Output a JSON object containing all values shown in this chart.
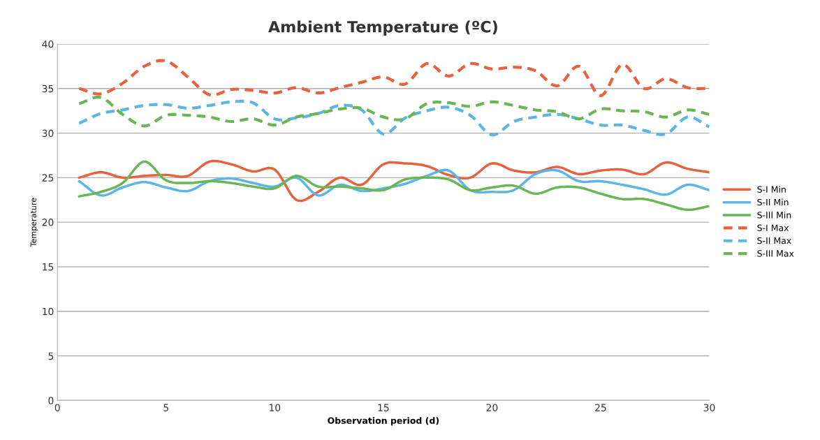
{
  "chart_data": {
    "type": "line",
    "title": "Ambient Temperature (ºC)",
    "xlabel": "Observation period (d)",
    "ylabel": "Temperature",
    "x": [
      1,
      2,
      3,
      4,
      5,
      6,
      7,
      8,
      9,
      10,
      11,
      12,
      13,
      14,
      15,
      16,
      17,
      18,
      19,
      20,
      21,
      22,
      23,
      24,
      25,
      26,
      27,
      28,
      29,
      30
    ],
    "series": [
      {
        "name": "S-I Min",
        "color": "#e8603c",
        "line_style": "solid",
        "values": [
          25.0,
          25.6,
          25.0,
          25.2,
          25.3,
          25.2,
          26.8,
          26.5,
          25.7,
          25.9,
          22.5,
          23.4,
          25.0,
          24.2,
          26.5,
          26.6,
          26.3,
          25.3,
          25.0,
          26.6,
          25.8,
          25.6,
          26.2,
          25.4,
          25.8,
          25.9,
          25.4,
          26.7,
          26.0,
          25.6
        ]
      },
      {
        "name": "S-II Min",
        "color": "#5bb5e5",
        "line_style": "solid",
        "values": [
          24.6,
          23.0,
          23.9,
          24.5,
          23.9,
          23.5,
          24.6,
          24.9,
          24.4,
          24.0,
          25.0,
          23.0,
          24.2,
          23.5,
          23.8,
          24.3,
          25.2,
          25.8,
          23.6,
          23.4,
          23.6,
          25.4,
          25.8,
          24.6,
          24.6,
          24.2,
          23.7,
          23.1,
          24.2,
          23.6
        ]
      },
      {
        "name": "S-III Min",
        "color": "#6ab655",
        "line_style": "solid",
        "values": [
          22.9,
          23.4,
          24.4,
          26.8,
          24.7,
          24.4,
          24.6,
          24.4,
          24.0,
          23.8,
          25.2,
          24.0,
          24.0,
          23.8,
          23.6,
          24.8,
          25.0,
          24.8,
          23.6,
          23.9,
          24.1,
          23.2,
          23.9,
          23.9,
          23.2,
          22.6,
          22.6,
          22.0,
          21.4,
          21.8
        ]
      },
      {
        "name": "S-I Max",
        "color": "#e8603c",
        "line_style": "dashed",
        "values": [
          35.0,
          34.4,
          35.6,
          37.5,
          38.1,
          36.3,
          34.3,
          34.9,
          34.8,
          34.5,
          35.1,
          34.5,
          35.1,
          35.7,
          36.3,
          35.5,
          37.8,
          36.4,
          37.8,
          37.2,
          37.4,
          37.0,
          35.3,
          37.5,
          34.2,
          37.7,
          35.0,
          36.1,
          35.1,
          35.0
        ]
      },
      {
        "name": "S-II Max",
        "color": "#5bb5e5",
        "line_style": "dashed",
        "values": [
          31.1,
          32.2,
          32.6,
          33.1,
          33.2,
          32.8,
          33.1,
          33.5,
          33.4,
          31.6,
          31.7,
          32.2,
          33.1,
          32.6,
          29.9,
          31.7,
          32.5,
          32.9,
          32.0,
          29.8,
          31.3,
          31.8,
          32.1,
          31.6,
          30.9,
          30.9,
          30.3,
          29.9,
          31.8,
          30.7
        ]
      },
      {
        "name": "S-III Max",
        "color": "#6ab655",
        "line_style": "dashed",
        "values": [
          33.3,
          34.0,
          32.1,
          30.8,
          32.0,
          32.0,
          31.8,
          31.3,
          31.6,
          30.9,
          31.8,
          32.2,
          32.7,
          32.8,
          31.8,
          31.6,
          33.3,
          33.4,
          33.0,
          33.5,
          33.1,
          32.6,
          32.4,
          31.6,
          32.7,
          32.5,
          32.4,
          31.8,
          32.6,
          32.1
        ]
      }
    ],
    "xlim": [
      0,
      30
    ],
    "xticks": [
      0,
      5,
      10,
      15,
      20,
      25,
      30
    ],
    "ylim": [
      0,
      40
    ],
    "yticks": [
      0,
      5,
      10,
      15,
      20,
      25,
      30,
      35,
      40
    ],
    "grid": "y",
    "legend": "right",
    "marker": "none"
  }
}
